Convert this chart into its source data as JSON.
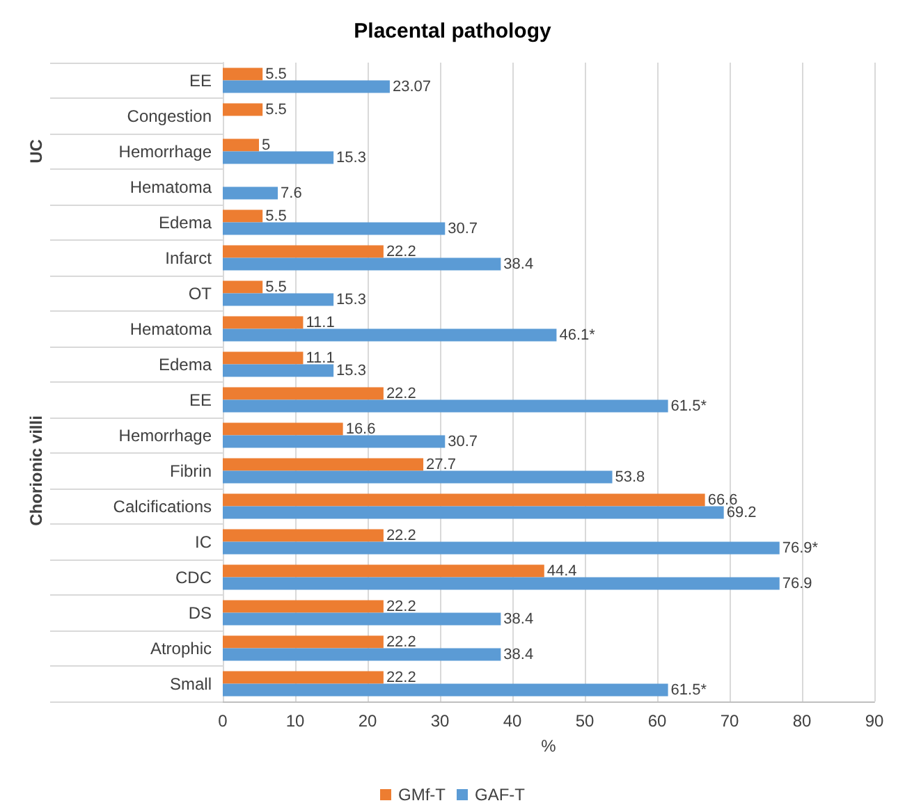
{
  "chart_data": {
    "type": "bar",
    "orientation": "horizontal",
    "title": "Placental pathology",
    "xlabel": "%",
    "categories": [
      "EE",
      "Congestion",
      "Hemorrhage",
      "Hematoma",
      "Edema",
      "Infarct",
      "OT",
      "Hematoma",
      "Edema",
      "EE",
      "Hemorrhage",
      "Fibrin",
      "Calcifications",
      "IC",
      "CDC",
      "DS",
      "Atrophic",
      "Small"
    ],
    "series": [
      {
        "name": "GMf-T",
        "color": "#ed7d31",
        "values": [
          5.5,
          5.5,
          5,
          null,
          5.5,
          22.2,
          5.5,
          11.1,
          11.1,
          22.2,
          16.6,
          27.7,
          66.6,
          22.2,
          44.4,
          22.2,
          22.2,
          22.2
        ],
        "value_labels": [
          "5.5",
          "5.5",
          "5",
          null,
          "5.5",
          "22.2",
          "5.5",
          "11.1",
          "11.1",
          "22.2",
          "16.6",
          "27.7",
          "66.6",
          "22.2",
          "44.4",
          "22.2",
          "22.2",
          "22.2"
        ]
      },
      {
        "name": "GAF-T",
        "color": "#5b9bd5",
        "values": [
          23.07,
          null,
          15.3,
          7.6,
          30.7,
          38.4,
          15.3,
          46.1,
          15.3,
          61.5,
          30.7,
          53.8,
          69.2,
          76.9,
          76.9,
          38.4,
          38.4,
          61.5
        ],
        "value_labels": [
          "23.07",
          null,
          "15.3",
          "7.6",
          "30.7",
          "38.4",
          "15.3",
          "46.1*",
          "15.3",
          "61.5*",
          "30.7",
          "53.8",
          "69.2",
          "76.9*",
          "76.9",
          "38.4",
          "38.4",
          "61.5*"
        ]
      }
    ],
    "xlim": [
      0,
      90
    ],
    "xticks": [
      0,
      10,
      20,
      30,
      40,
      50,
      60,
      70,
      80,
      90
    ],
    "grid": "x",
    "legend": "bottom",
    "annotations": [
      "UC",
      "Chorionic villi"
    ]
  }
}
